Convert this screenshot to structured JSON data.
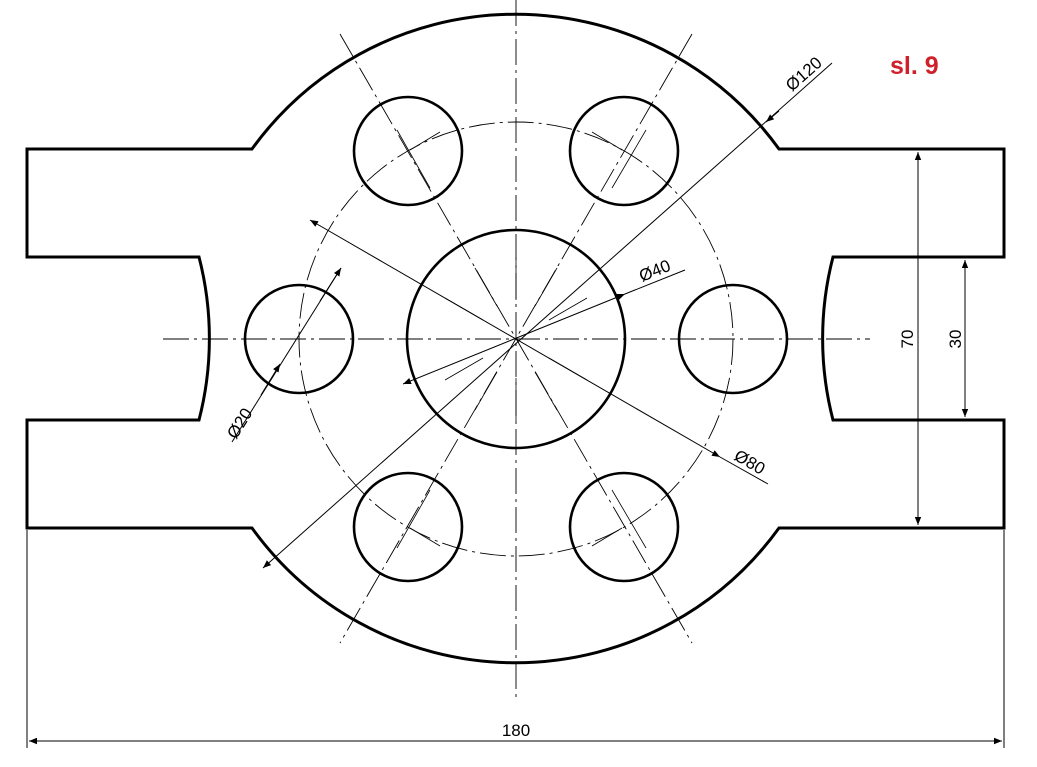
{
  "sheet_label": "sl. 9",
  "dimensions": {
    "d120": "Ø120",
    "d40": "Ø40",
    "d20": "Ø20",
    "d80": "Ø80",
    "h70": "70",
    "h30": "30",
    "w180": "180"
  },
  "colors": {
    "label": "#d0202a",
    "lines": "#000000"
  }
}
